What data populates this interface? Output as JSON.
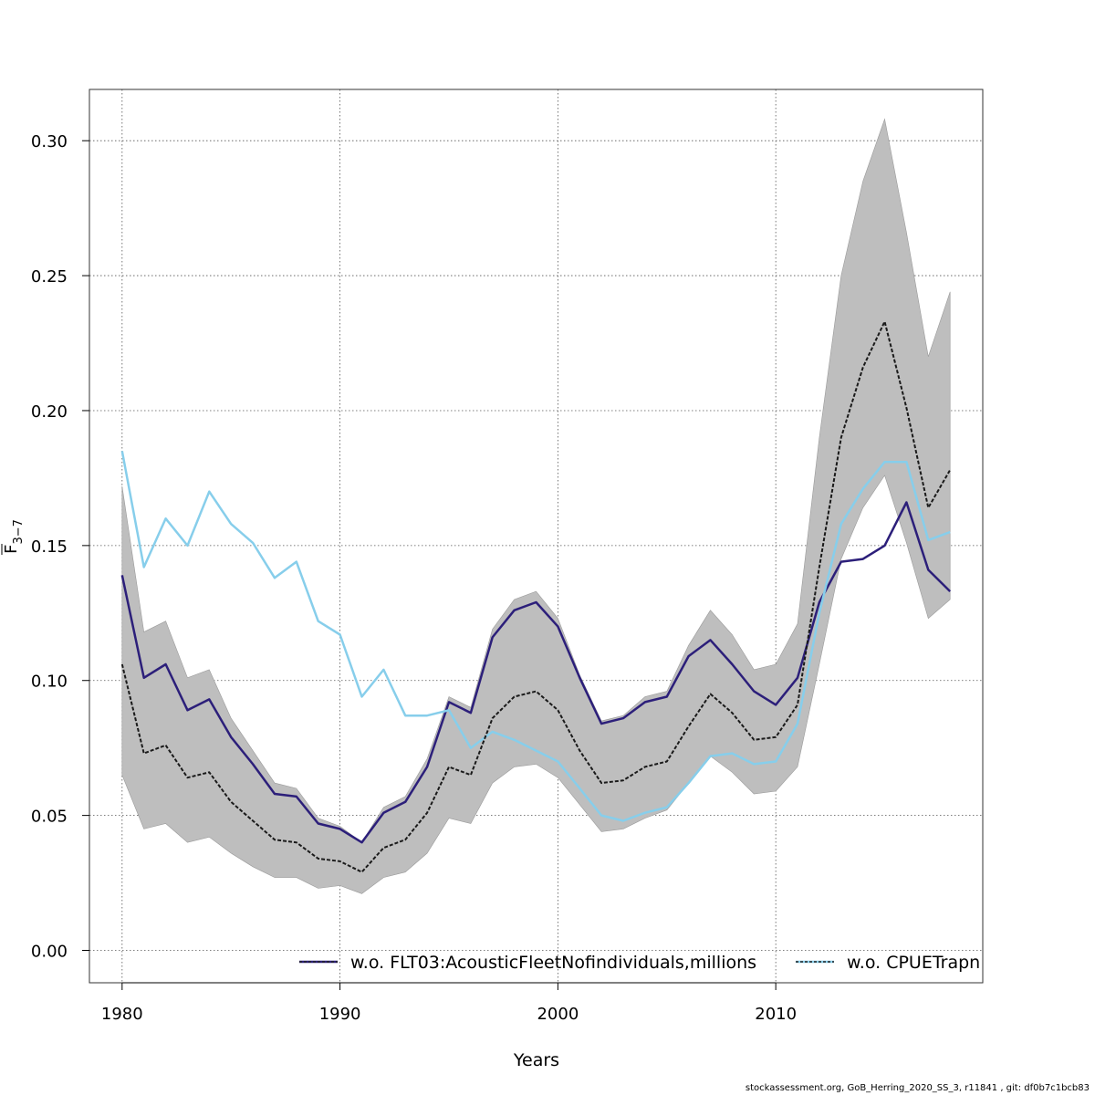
{
  "chart_data": {
    "type": "line",
    "xlabel": "Years",
    "ylabel_main": "F",
    "ylabel_sub": "3−7",
    "xlim": [
      1978.5,
      2019.5
    ],
    "ylim": [
      -0.012,
      0.319
    ],
    "xticks": [
      1980,
      1990,
      2000,
      2010
    ],
    "yticks": [
      0.0,
      0.05,
      0.1,
      0.15,
      0.2,
      0.25,
      0.3
    ],
    "ytick_labels": [
      "0.00",
      "0.05",
      "0.10",
      "0.15",
      "0.20",
      "0.25",
      "0.30"
    ],
    "grid": true,
    "legend_position": "bottom",
    "x": [
      1980,
      1981,
      1982,
      1983,
      1984,
      1985,
      1986,
      1987,
      1988,
      1989,
      1990,
      1991,
      1992,
      1993,
      1994,
      1995,
      1996,
      1997,
      1998,
      1999,
      2000,
      2001,
      2002,
      2003,
      2004,
      2005,
      2006,
      2007,
      2008,
      2009,
      2010,
      2011,
      2012,
      2013,
      2014,
      2015,
      2016,
      2017,
      2018
    ],
    "base": [
      0.106,
      0.073,
      0.076,
      0.064,
      0.066,
      0.055,
      0.048,
      0.041,
      0.04,
      0.034,
      0.033,
      0.029,
      0.038,
      0.041,
      0.051,
      0.068,
      0.065,
      0.086,
      0.094,
      0.096,
      0.089,
      0.074,
      0.062,
      0.063,
      0.068,
      0.07,
      0.083,
      0.095,
      0.088,
      0.078,
      0.079,
      0.091,
      0.142,
      0.19,
      0.216,
      0.233,
      0.201,
      0.164,
      0.178
    ],
    "ci_lower": [
      0.065,
      0.045,
      0.047,
      0.04,
      0.042,
      0.036,
      0.031,
      0.027,
      0.027,
      0.023,
      0.024,
      0.021,
      0.027,
      0.029,
      0.036,
      0.049,
      0.047,
      0.062,
      0.068,
      0.069,
      0.064,
      0.054,
      0.044,
      0.045,
      0.049,
      0.052,
      0.062,
      0.072,
      0.066,
      0.058,
      0.059,
      0.068,
      0.106,
      0.145,
      0.164,
      0.176,
      0.151,
      0.123,
      0.13
    ],
    "ci_upper": [
      0.172,
      0.118,
      0.122,
      0.101,
      0.104,
      0.086,
      0.074,
      0.062,
      0.06,
      0.049,
      0.046,
      0.04,
      0.053,
      0.057,
      0.071,
      0.094,
      0.09,
      0.119,
      0.13,
      0.133,
      0.123,
      0.102,
      0.085,
      0.087,
      0.094,
      0.096,
      0.113,
      0.126,
      0.117,
      0.104,
      0.106,
      0.121,
      0.19,
      0.25,
      0.285,
      0.308,
      0.266,
      0.22,
      0.244
    ],
    "series": [
      {
        "name": "w.o. FLT03:AcousticFleetNofindividuals,millions",
        "color": "#2c1f7a",
        "values": [
          0.139,
          0.101,
          0.106,
          0.089,
          0.093,
          0.079,
          0.069,
          0.058,
          0.057,
          0.047,
          0.045,
          0.04,
          0.051,
          0.055,
          0.068,
          0.092,
          0.088,
          0.116,
          0.126,
          0.129,
          0.12,
          0.101,
          0.084,
          0.086,
          0.092,
          0.094,
          0.109,
          0.115,
          0.106,
          0.096,
          0.091,
          0.101,
          0.129,
          0.144,
          0.145,
          0.15,
          0.166,
          0.141,
          0.133
        ]
      },
      {
        "name": "w.o. CPUETrapn",
        "color": "#87ceeb",
        "values": [
          0.185,
          0.142,
          0.16,
          0.15,
          0.17,
          0.158,
          0.151,
          0.138,
          0.144,
          0.122,
          0.117,
          0.094,
          0.104,
          0.087,
          0.087,
          0.089,
          0.075,
          0.081,
          0.078,
          0.074,
          0.07,
          0.06,
          0.05,
          0.048,
          0.051,
          0.053,
          0.062,
          0.072,
          0.073,
          0.069,
          0.07,
          0.084,
          0.125,
          0.158,
          0.171,
          0.181,
          0.181,
          0.152,
          0.155
        ]
      }
    ]
  },
  "footer_text": "stockassessment.org, GoB_Herring_2020_SS_3, r11841 , git: df0b7c1bcb83"
}
